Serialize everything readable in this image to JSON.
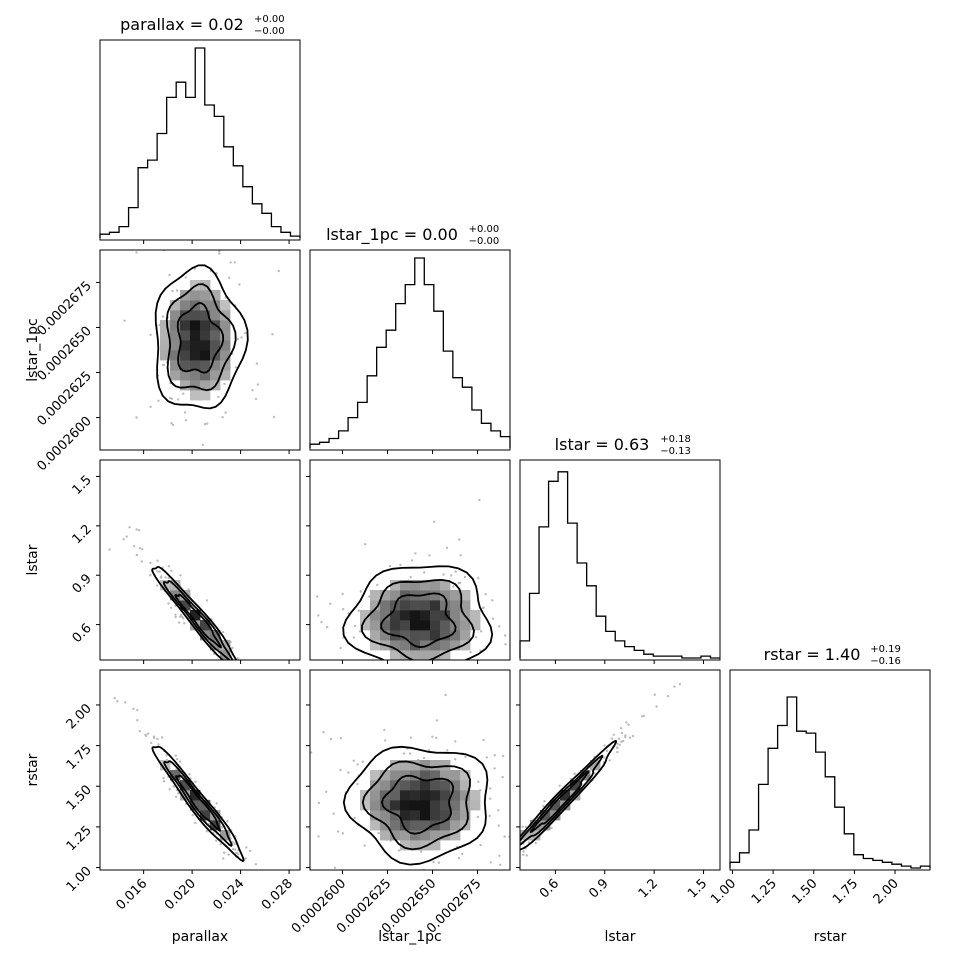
{
  "chart_data": {
    "type": "corner",
    "parameters": [
      {
        "name": "parallax",
        "label": "parallax",
        "title_main": "parallax = 0.02",
        "title_sup": "+0.00",
        "title_sub": "−0.00",
        "range": [
          0.0124,
          0.0289
        ],
        "ticks": [
          0.016,
          0.02,
          0.024,
          0.028
        ],
        "tick_labels": [
          "0.016",
          "0.020",
          "0.024",
          "0.028"
        ],
        "median": 0.0205,
        "hist": [
          0.02,
          0.03,
          0.06,
          0.16,
          0.37,
          0.41,
          0.55,
          0.74,
          0.82,
          0.74,
          1.0,
          0.7,
          0.64,
          0.48,
          0.38,
          0.27,
          0.18,
          0.13,
          0.06,
          0.03,
          0.01
        ]
      },
      {
        "name": "lstar_1pc",
        "label": "lstar_1pc",
        "title_main": "lstar_1pc = 0.00",
        "title_sup": "+0.00",
        "title_sub": "−0.00",
        "range": [
          0.0002582,
          0.0002693
        ],
        "ticks": [
          0.00026,
          0.0002625,
          0.000265,
          0.0002675
        ],
        "tick_labels": [
          "0.0002600",
          "0.0002625",
          "0.0002650",
          "0.0002675"
        ],
        "median": 0.0002643,
        "hist": [
          0.02,
          0.03,
          0.05,
          0.09,
          0.16,
          0.24,
          0.38,
          0.53,
          0.62,
          0.76,
          0.86,
          1.0,
          0.86,
          0.72,
          0.51,
          0.37,
          0.32,
          0.2,
          0.13,
          0.09,
          0.06
        ]
      },
      {
        "name": "lstar",
        "label": "lstar",
        "title_main": "lstar = 0.63",
        "title_sup": "+0.18",
        "title_sub": "−0.13",
        "range": [
          0.385,
          1.6
        ],
        "ticks": [
          0.6,
          0.9,
          1.2,
          1.5
        ],
        "tick_labels": [
          "0.6",
          "0.9",
          "1.2",
          "1.5"
        ],
        "median": 0.63,
        "hist": [
          0.09,
          0.34,
          0.69,
          0.93,
          0.98,
          0.71,
          0.5,
          0.38,
          0.22,
          0.14,
          0.09,
          0.06,
          0.04,
          0.02,
          0.01,
          0.01,
          0.01,
          0.0,
          0.0,
          0.01,
          0.0
        ]
      },
      {
        "name": "rstar",
        "label": "rstar",
        "title_main": "rstar = 1.40",
        "title_sup": "+0.19",
        "title_sub": "−0.16",
        "range": [
          0.985,
          2.215
        ],
        "ticks": [
          1.0,
          1.25,
          1.5,
          1.75,
          2.0
        ],
        "tick_labels": [
          "1.00",
          "1.25",
          "1.50",
          "1.75",
          "2.00"
        ],
        "median": 1.4,
        "hist": [
          0.03,
          0.08,
          0.2,
          0.44,
          0.63,
          0.75,
          0.9,
          0.72,
          0.71,
          0.61,
          0.48,
          0.32,
          0.18,
          0.07,
          0.05,
          0.04,
          0.03,
          0.02,
          0.01,
          0.0,
          0.01
        ]
      }
    ],
    "correlations": [
      {
        "row": 1,
        "col": 0,
        "center": [
          0.0205,
          0.0002643
        ],
        "sigma": [
          0.0018,
          1.9e-06
        ],
        "rho": 0.0
      },
      {
        "row": 2,
        "col": 0,
        "center": [
          0.0205,
          0.63
        ],
        "sigma": [
          0.0018,
          0.16
        ],
        "rho": -0.97
      },
      {
        "row": 2,
        "col": 1,
        "center": [
          0.0002643,
          0.63
        ],
        "sigma": [
          1.9e-06,
          0.16
        ],
        "rho": 0.0
      },
      {
        "row": 3,
        "col": 0,
        "center": [
          0.0205,
          1.4
        ],
        "sigma": [
          0.0018,
          0.17
        ],
        "rho": -0.97
      },
      {
        "row": 3,
        "col": 1,
        "center": [
          0.0002643,
          1.4
        ],
        "sigma": [
          1.9e-06,
          0.17
        ],
        "rho": 0.0
      },
      {
        "row": 3,
        "col": 2,
        "center": [
          0.63,
          1.4
        ],
        "sigma": [
          0.16,
          0.17
        ],
        "rho": 0.98
      }
    ]
  }
}
